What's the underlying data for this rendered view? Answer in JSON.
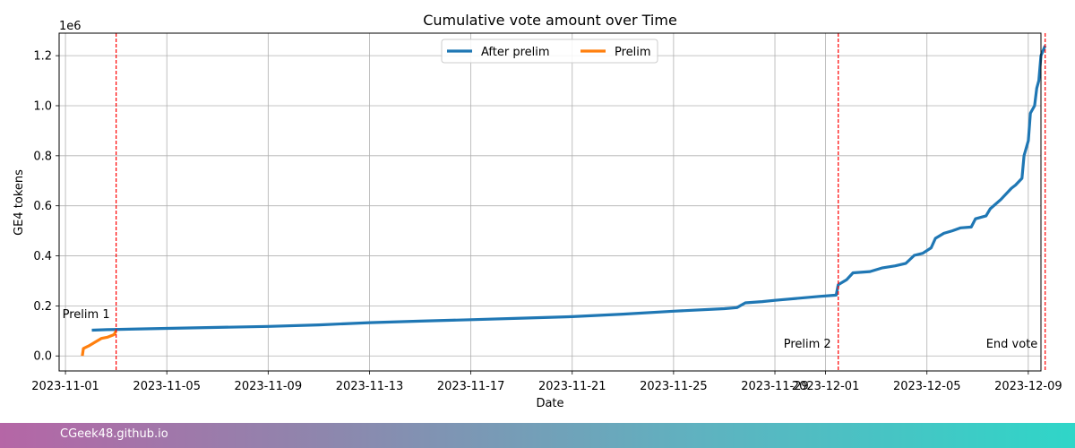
{
  "chart_data": {
    "type": "line",
    "title": "Cumulative vote amount over Time",
    "xlabel": "Date",
    "ylabel": "GE4 tokens",
    "y_multiplier_label": "1e6",
    "xlim": [
      "2023-10-31T18:00",
      "2023-12-09T12:00"
    ],
    "ylim": [
      -60000,
      1290000
    ],
    "x_ticks": [
      "2023-11-01",
      "2023-11-05",
      "2023-11-09",
      "2023-11-13",
      "2023-11-17",
      "2023-11-21",
      "2023-11-25",
      "2023-11-29",
      "2023-12-01",
      "2023-12-05",
      "2023-12-09"
    ],
    "y_ticks": [
      0,
      200000,
      400000,
      600000,
      800000,
      1000000,
      1200000
    ],
    "y_tick_labels": [
      "0.0",
      "0.2",
      "0.4",
      "0.6",
      "0.8",
      "1.0",
      "1.2"
    ],
    "grid": true,
    "legend_position": "top-center",
    "series": [
      {
        "name": "After prelim",
        "color": "#1f77b4",
        "points": [
          [
            "2023-11-02T01:00",
            103000
          ],
          [
            "2023-11-02T16:00",
            105000
          ],
          [
            "2023-11-03T12:00",
            107000
          ],
          [
            "2023-11-05T00:00",
            110000
          ],
          [
            "2023-11-07T00:00",
            114000
          ],
          [
            "2023-11-09T00:00",
            118000
          ],
          [
            "2023-11-11T00:00",
            124000
          ],
          [
            "2023-11-13T00:00",
            133000
          ],
          [
            "2023-11-15T00:00",
            139000
          ],
          [
            "2023-11-17T00:00",
            145000
          ],
          [
            "2023-11-19T00:00",
            151000
          ],
          [
            "2023-11-21T00:00",
            157000
          ],
          [
            "2023-11-23T00:00",
            167000
          ],
          [
            "2023-11-25T00:00",
            179000
          ],
          [
            "2023-11-27T00:00",
            189000
          ],
          [
            "2023-11-27T12:00",
            193000
          ],
          [
            "2023-11-27T20:00",
            212000
          ],
          [
            "2023-11-28T12:00",
            217000
          ],
          [
            "2023-11-29T00:00",
            222000
          ],
          [
            "2023-11-30T00:00",
            231000
          ],
          [
            "2023-11-30T18:00",
            238000
          ],
          [
            "2023-12-01T10:00",
            243000
          ],
          [
            "2023-12-01T12:00",
            285000
          ],
          [
            "2023-12-01T20:00",
            305000
          ],
          [
            "2023-12-02T02:00",
            332000
          ],
          [
            "2023-12-02T18:00",
            337000
          ],
          [
            "2023-12-03T06:00",
            352000
          ],
          [
            "2023-12-03T18:00",
            360000
          ],
          [
            "2023-12-04T04:00",
            370000
          ],
          [
            "2023-12-04T12:00",
            402000
          ],
          [
            "2023-12-04T20:00",
            410000
          ],
          [
            "2023-12-05T04:00",
            432000
          ],
          [
            "2023-12-05T08:00",
            470000
          ],
          [
            "2023-12-05T16:00",
            490000
          ],
          [
            "2023-12-06T00:00",
            500000
          ],
          [
            "2023-12-06T08:00",
            512000
          ],
          [
            "2023-12-06T18:00",
            515000
          ],
          [
            "2023-12-06T22:00",
            548000
          ],
          [
            "2023-12-07T08:00",
            560000
          ],
          [
            "2023-12-07T12:00",
            588000
          ],
          [
            "2023-12-07T22:00",
            625000
          ],
          [
            "2023-12-08T08:00",
            670000
          ],
          [
            "2023-12-08T12:00",
            683000
          ],
          [
            "2023-12-08T18:00",
            710000
          ],
          [
            "2023-12-08T20:00",
            800000
          ],
          [
            "2023-12-09T00:00",
            860000
          ],
          [
            "2023-12-09T02:00",
            970000
          ],
          [
            "2023-12-09T06:00",
            1000000
          ],
          [
            "2023-12-09T08:00",
            1070000
          ],
          [
            "2023-12-09T10:00",
            1100000
          ],
          [
            "2023-12-09T12:00",
            1200000
          ],
          [
            "2023-12-09T16:00",
            1240000
          ]
        ]
      },
      {
        "name": "Prelim",
        "color": "#ff7f0e",
        "points": [
          [
            "2023-11-01T16:00",
            0
          ],
          [
            "2023-11-01T17:00",
            30000
          ],
          [
            "2023-11-01T22:00",
            40000
          ],
          [
            "2023-11-02T04:00",
            55000
          ],
          [
            "2023-11-02T10:00",
            70000
          ],
          [
            "2023-11-02T16:00",
            75000
          ],
          [
            "2023-11-02T22:00",
            85000
          ],
          [
            "2023-11-03T00:00",
            100000
          ]
        ]
      }
    ],
    "vlines": [
      {
        "x": "2023-11-03T00:00",
        "label": "Prelim 1",
        "color": "#ff0000"
      },
      {
        "x": "2023-12-01T12:00",
        "label": "Prelim 2",
        "color": "#ff0000"
      },
      {
        "x": "2023-12-09T16:00",
        "label": "End vote",
        "color": "#ff0000"
      }
    ]
  },
  "footer": {
    "site": "CGeek48.github.io"
  }
}
